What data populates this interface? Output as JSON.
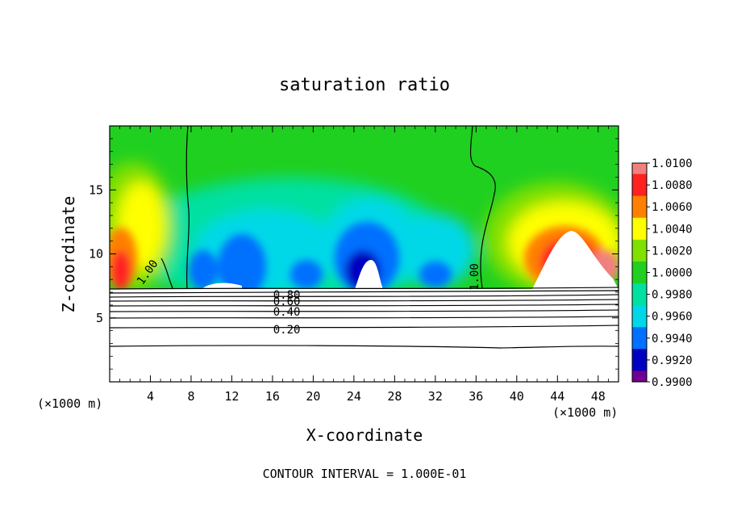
{
  "chart_data": {
    "type": "heatmap",
    "title": "saturation ratio",
    "xlabel": "X-coordinate",
    "ylabel": "Z-coordinate",
    "x_unit_left": "(×1000 m)",
    "x_unit_right": "(×1000 m)",
    "footer": "CONTOUR INTERVAL = 1.000E-01",
    "xlim": [
      0,
      50
    ],
    "ylim": [
      0,
      20
    ],
    "x_ticks": [
      4,
      8,
      12,
      16,
      20,
      24,
      28,
      32,
      36,
      40,
      44,
      48
    ],
    "y_ticks": [
      5,
      10,
      15
    ],
    "colorbar": {
      "levels": [
        "1.0100",
        "1.0080",
        "1.0060",
        "1.0040",
        "1.0020",
        "1.0000",
        "0.9980",
        "0.9960",
        "0.9940",
        "0.9920",
        "0.9900"
      ],
      "colors": [
        "#f08080",
        "#ff2020",
        "#ff8000",
        "#ffff00",
        "#80e000",
        "#20d020",
        "#00e0a0",
        "#00d8e8",
        "#0070ff",
        "#0000c0",
        "#700090"
      ]
    },
    "contour_labels": [
      {
        "text": "1.00",
        "x": 4.0,
        "z": 8.4
      },
      {
        "text": "1.00",
        "x": 36.2,
        "z": 8.2
      },
      {
        "text": "0.80",
        "x": 17.4,
        "z": 6.8
      },
      {
        "text": "0.60",
        "x": 17.4,
        "z": 6.3
      },
      {
        "text": "0.40",
        "x": 17.4,
        "z": 5.5
      },
      {
        "text": "0.20",
        "x": 17.4,
        "z": 4.1
      }
    ]
  }
}
